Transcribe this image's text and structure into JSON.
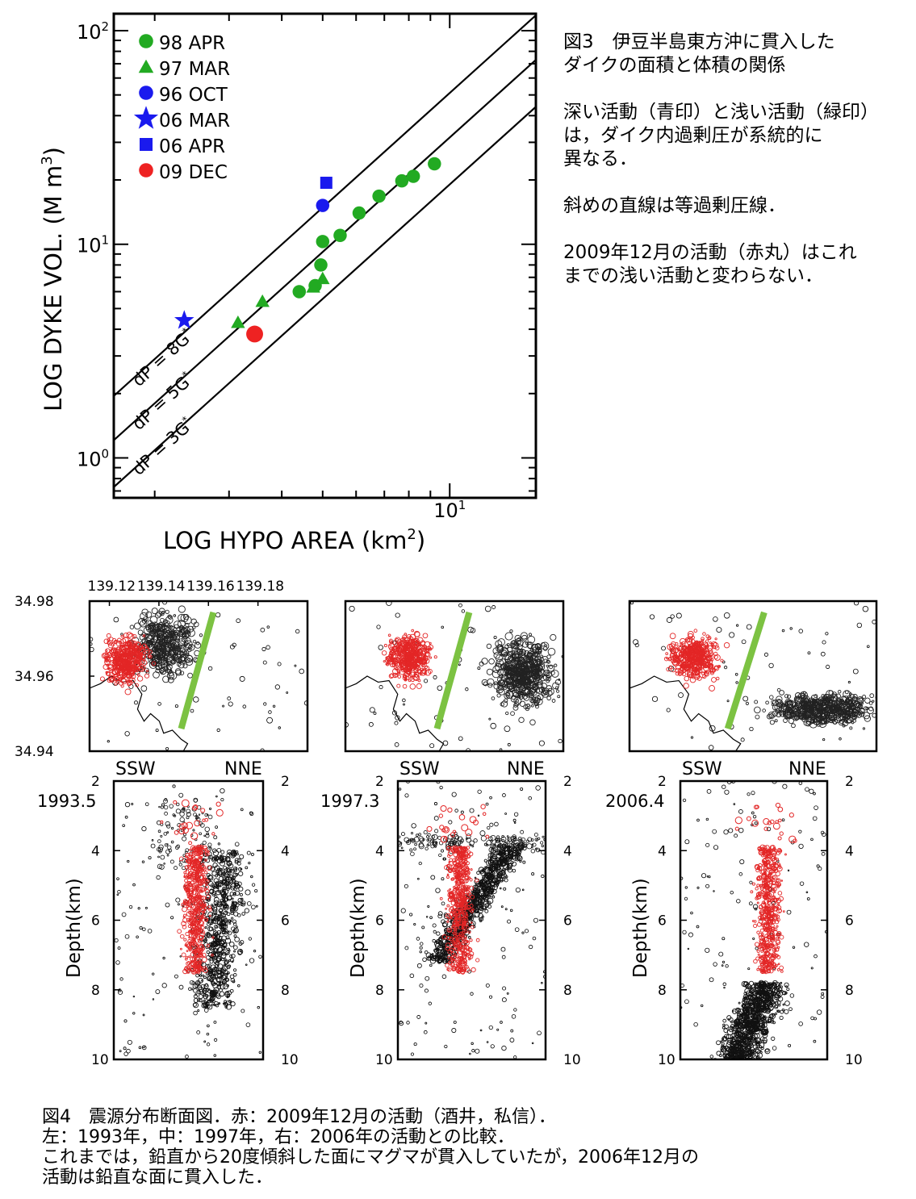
{
  "fig3": {
    "xlabel": "LOG HYPO AREA (km",
    "xlabel_sup": "2",
    "xlabel_end": ")",
    "ylabel": "LOG DYKE VOL. (M m",
    "ylabel_sup": "3",
    "ylabel_end": ")",
    "caption": [
      "図3　伊豆半島東方沖に貫入した",
      "ダイクの面積と体積の関係",
      "",
      "深い活動（青印）と浅い活動（緑印）",
      "は，ダイク内過剰圧が系統的に",
      "異なる．",
      "",
      "斜めの直線は等過剰圧線．",
      "",
      "2009年12月の活動（赤丸）はこれ",
      "までの浅い活動と変わらない．"
    ]
  },
  "chart_data": [
    {
      "type": "scatter",
      "xscale": "log",
      "yscale": "log",
      "xlim": [
        1.6,
        16
      ],
      "ylim": [
        0.65,
        120
      ],
      "y_ticks": [
        {
          "value": 1,
          "label": "10",
          "exp": "0"
        },
        {
          "value": 10,
          "label": "10",
          "exp": "1"
        },
        {
          "value": 100,
          "label": "10",
          "exp": "2"
        }
      ],
      "x_ticks": [
        {
          "value": 10,
          "label": "10",
          "exp": "1"
        }
      ],
      "legend_position": "top-left",
      "colors": {
        "green": "#22aa22",
        "blue": "#1a1aee",
        "red": "#ee2222"
      },
      "series": [
        {
          "name": "98 APR",
          "marker": "circle",
          "color": "#22aa22",
          "points": [
            [
              4.4,
              6.0
            ],
            [
              4.8,
              6.4
            ],
            [
              4.95,
              8.0
            ],
            [
              5.0,
              10.3
            ],
            [
              5.5,
              11.0
            ],
            [
              6.1,
              14.0
            ],
            [
              6.8,
              16.8
            ],
            [
              7.7,
              19.8
            ],
            [
              8.2,
              20.8
            ],
            [
              9.2,
              23.8
            ]
          ]
        },
        {
          "name": "97 MAR",
          "marker": "triangle",
          "color": "#22aa22",
          "points": [
            [
              3.15,
              4.3
            ],
            [
              3.6,
              5.4
            ],
            [
              4.75,
              6.3
            ],
            [
              5.0,
              6.9
            ]
          ]
        },
        {
          "name": "96 OCT",
          "marker": "circle",
          "color": "#1a1aee",
          "points": [
            [
              5.0,
              15.2
            ]
          ]
        },
        {
          "name": "06 MAR",
          "marker": "star",
          "color": "#1a1aee",
          "points": [
            [
              2.35,
              4.4
            ]
          ]
        },
        {
          "name": "06 APR",
          "marker": "square",
          "color": "#1a1aee",
          "points": [
            [
              5.1,
              19.4
            ]
          ]
        },
        {
          "name": "09 DEC",
          "marker": "circle",
          "color": "#ee2222",
          "points": [
            [
              3.45,
              3.8
            ]
          ]
        }
      ],
      "lines": [
        {
          "label": "dP = 8G",
          "points": [
            [
              1.6,
              1.95
            ],
            [
              16,
              118
            ]
          ]
        },
        {
          "label": "dP = 5G",
          "points": [
            [
              1.6,
              1.21
            ],
            [
              16,
              73
            ]
          ]
        },
        {
          "label": "dP = 3G",
          "points": [
            [
              1.6,
              0.73
            ],
            [
              16,
              44
            ]
          ]
        }
      ]
    },
    {
      "type": "scatter",
      "title": "map",
      "lon_ticks": [
        139.12,
        139.14,
        139.16,
        139.18
      ],
      "lat_ticks": [
        34.94,
        34.96,
        34.98
      ],
      "xlim": [
        139.112,
        139.2
      ],
      "ylim": [
        34.94,
        34.98
      ],
      "dyke_line": [
        [
          139.149,
          34.946
        ],
        [
          139.162,
          34.977
        ]
      ],
      "panels": [
        "1993.5",
        "1997.3",
        "2006.4"
      ]
    },
    {
      "type": "scatter",
      "title": "cross-section",
      "ylabel": "Depth(km)",
      "ylim": [
        10,
        2
      ],
      "y_ticks": [
        2,
        4,
        6,
        8,
        10
      ],
      "labels_top": [
        "SSW",
        "NNE"
      ],
      "panels": [
        "1993.5",
        "1997.3",
        "2006.4"
      ]
    }
  ],
  "fig4": {
    "caption": [
      "図4　震源分布断面図．赤：2009年12月の活動（酒井，私信）．",
      "左：1993年，中：1997年，右：2006年の活動との比較．",
      "これまでは，鉛直から20度傾斜した面にマグマが貫入していたが，2006年12月の",
      "活動は鉛直な面に貫入した．"
    ]
  }
}
